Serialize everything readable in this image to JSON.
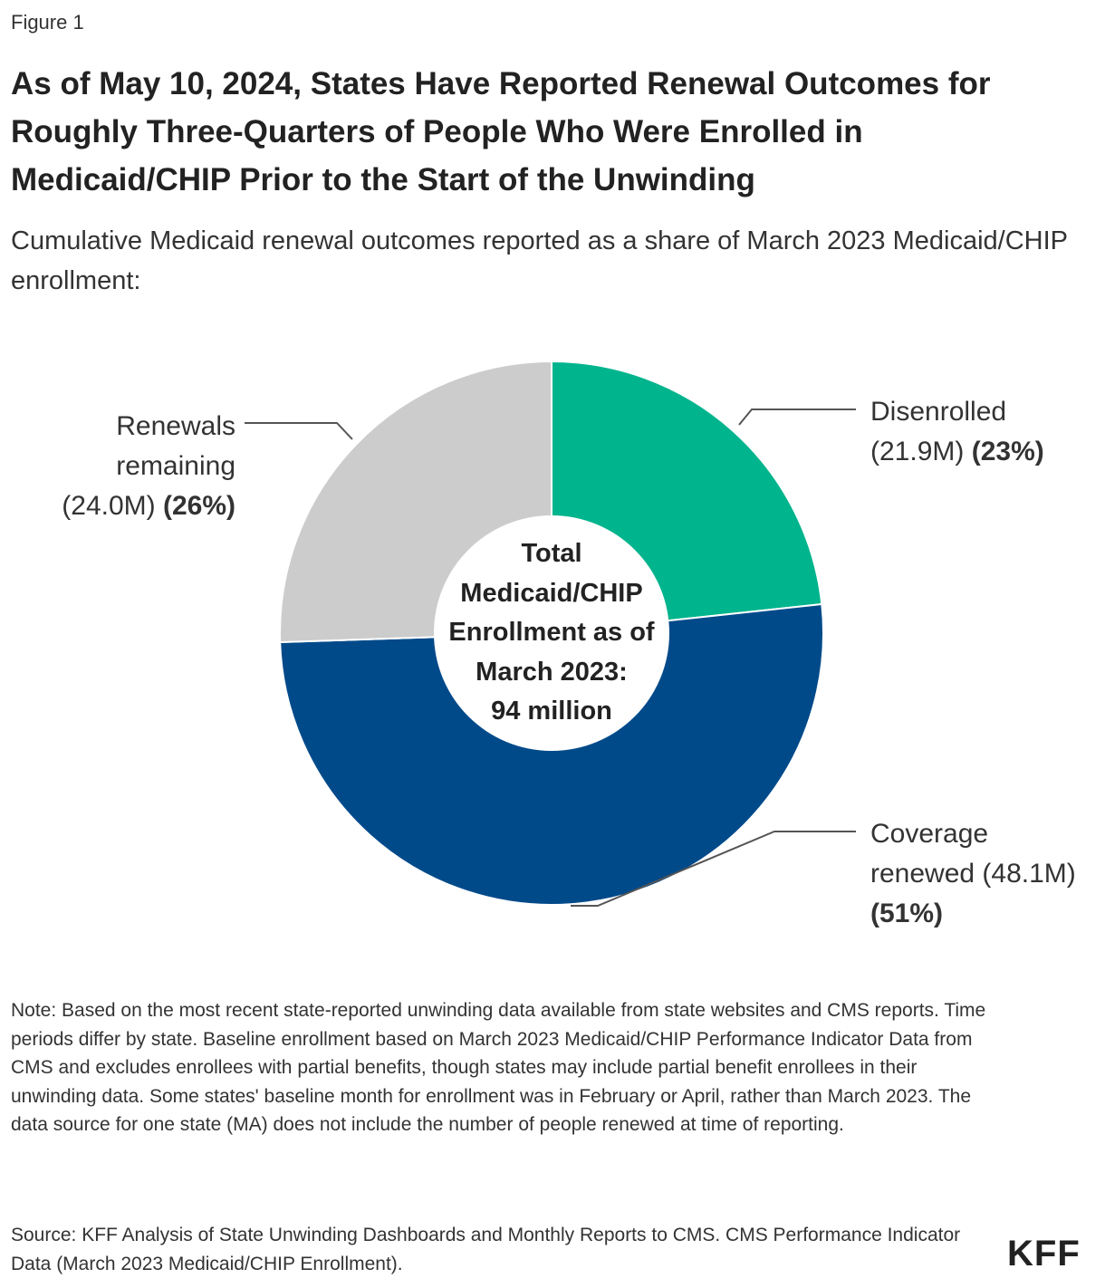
{
  "figure_label": "Figure 1",
  "title": "As of May 10, 2024, States Have Reported Renewal Outcomes for Roughly Three-Quarters of People Who Were Enrolled in Medicaid/CHIP Prior to the Start of the Unwinding",
  "subtitle": "Cumulative Medicaid renewal outcomes reported as a share of March 2023 Medicaid/CHIP enrollment:",
  "chart_data": {
    "type": "pie",
    "variant": "donut",
    "title": "",
    "center_label": [
      "Total",
      "Medicaid/CHIP",
      "Enrollment as of",
      "March 2023:",
      "94 million"
    ],
    "slices": [
      {
        "label": "Disenrolled",
        "value_text": "(21.9M)",
        "percent_text": "(23%)",
        "value": 21.9,
        "percent": 23,
        "color": "#00b48d"
      },
      {
        "label": "Coverage renewed",
        "value_text": "(48.1M)",
        "percent_text": "(51%)",
        "value": 48.1,
        "percent": 51,
        "color": "#004a8a"
      },
      {
        "label": "Renewals remaining",
        "value_text": "(24.0M)",
        "percent_text": "(26%)",
        "value": 24.0,
        "percent": 26,
        "color": "#cccccc"
      }
    ],
    "label_lines": {
      "disenrolled": [
        "Disenrolled",
        "(21.9M)",
        "(23%)"
      ],
      "renewed": [
        "Coverage",
        "renewed (48.1M)",
        "(51%)"
      ],
      "remaining": [
        "Renewals",
        "remaining",
        "(24.0M)",
        "(26%)"
      ]
    }
  },
  "note": "Note: Based on the most recent state-reported unwinding data available from state websites and CMS reports. Time periods differ by state. Baseline enrollment based on March 2023 Medicaid/CHIP Performance Indicator Data from CMS and excludes enrollees with partial benefits, though states may include partial benefit enrollees in their unwinding data. Some states' baseline month for enrollment was in February or April, rather than March 2023. The data source for one state (MA) does not include the number of people renewed at time of reporting.",
  "source": "Source: KFF Analysis of State Unwinding Dashboards and Monthly Reports to CMS. CMS Performance Indicator Data (March 2023 Medicaid/CHIP Enrollment).",
  "logo": "KFF"
}
